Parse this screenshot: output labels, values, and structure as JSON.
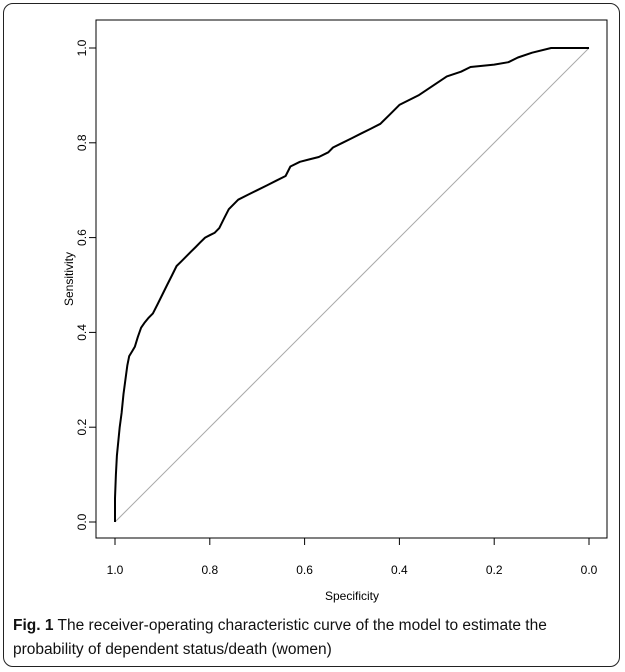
{
  "caption": {
    "label": "Fig. 1",
    "text": "The receiver-operating characteristic curve of the model to estimate the probability of dependent status/death (women)"
  },
  "chart_data": {
    "type": "line",
    "title": "",
    "xlabel": "Specificity",
    "ylabel": "Sensitivity",
    "x_reversed": true,
    "xlim": [
      1.0,
      0.0
    ],
    "ylim": [
      0.0,
      1.0
    ],
    "x_ticks": [
      "1.0",
      "0.8",
      "0.6",
      "0.4",
      "0.2",
      "0.0"
    ],
    "y_ticks": [
      "0.0",
      "0.2",
      "0.4",
      "0.6",
      "0.8",
      "1.0"
    ],
    "grid": false,
    "legend": "none",
    "series": [
      {
        "style": "roc-curve",
        "color": "#000000",
        "x": [
          1.0,
          1.0,
          0.998,
          0.996,
          0.993,
          0.99,
          0.986,
          0.982,
          0.978,
          0.974,
          0.97,
          0.964,
          0.958,
          0.952,
          0.945,
          0.938,
          0.93,
          0.92,
          0.91,
          0.9,
          0.89,
          0.88,
          0.87,
          0.86,
          0.85,
          0.84,
          0.83,
          0.82,
          0.81,
          0.8,
          0.79,
          0.78,
          0.77,
          0.76,
          0.74,
          0.72,
          0.7,
          0.68,
          0.66,
          0.64,
          0.63,
          0.61,
          0.59,
          0.57,
          0.55,
          0.54,
          0.52,
          0.5,
          0.48,
          0.46,
          0.44,
          0.42,
          0.4,
          0.38,
          0.36,
          0.33,
          0.3,
          0.27,
          0.25,
          0.2,
          0.17,
          0.15,
          0.12,
          0.08,
          0.04,
          0.0
        ],
        "y": [
          0.0,
          0.05,
          0.1,
          0.14,
          0.17,
          0.2,
          0.23,
          0.27,
          0.3,
          0.33,
          0.35,
          0.36,
          0.37,
          0.39,
          0.41,
          0.42,
          0.43,
          0.44,
          0.46,
          0.48,
          0.5,
          0.52,
          0.54,
          0.55,
          0.56,
          0.57,
          0.58,
          0.59,
          0.6,
          0.605,
          0.61,
          0.62,
          0.64,
          0.66,
          0.68,
          0.69,
          0.7,
          0.71,
          0.72,
          0.73,
          0.75,
          0.76,
          0.765,
          0.77,
          0.78,
          0.79,
          0.8,
          0.81,
          0.82,
          0.83,
          0.84,
          0.86,
          0.88,
          0.89,
          0.9,
          0.92,
          0.94,
          0.95,
          0.96,
          0.965,
          0.97,
          0.98,
          0.99,
          1.0,
          1.0,
          1.0
        ]
      },
      {
        "style": "reference-diagonal",
        "color": "#aaaaaa",
        "x": [
          1.0,
          0.0
        ],
        "y": [
          0.0,
          1.0
        ]
      }
    ]
  }
}
